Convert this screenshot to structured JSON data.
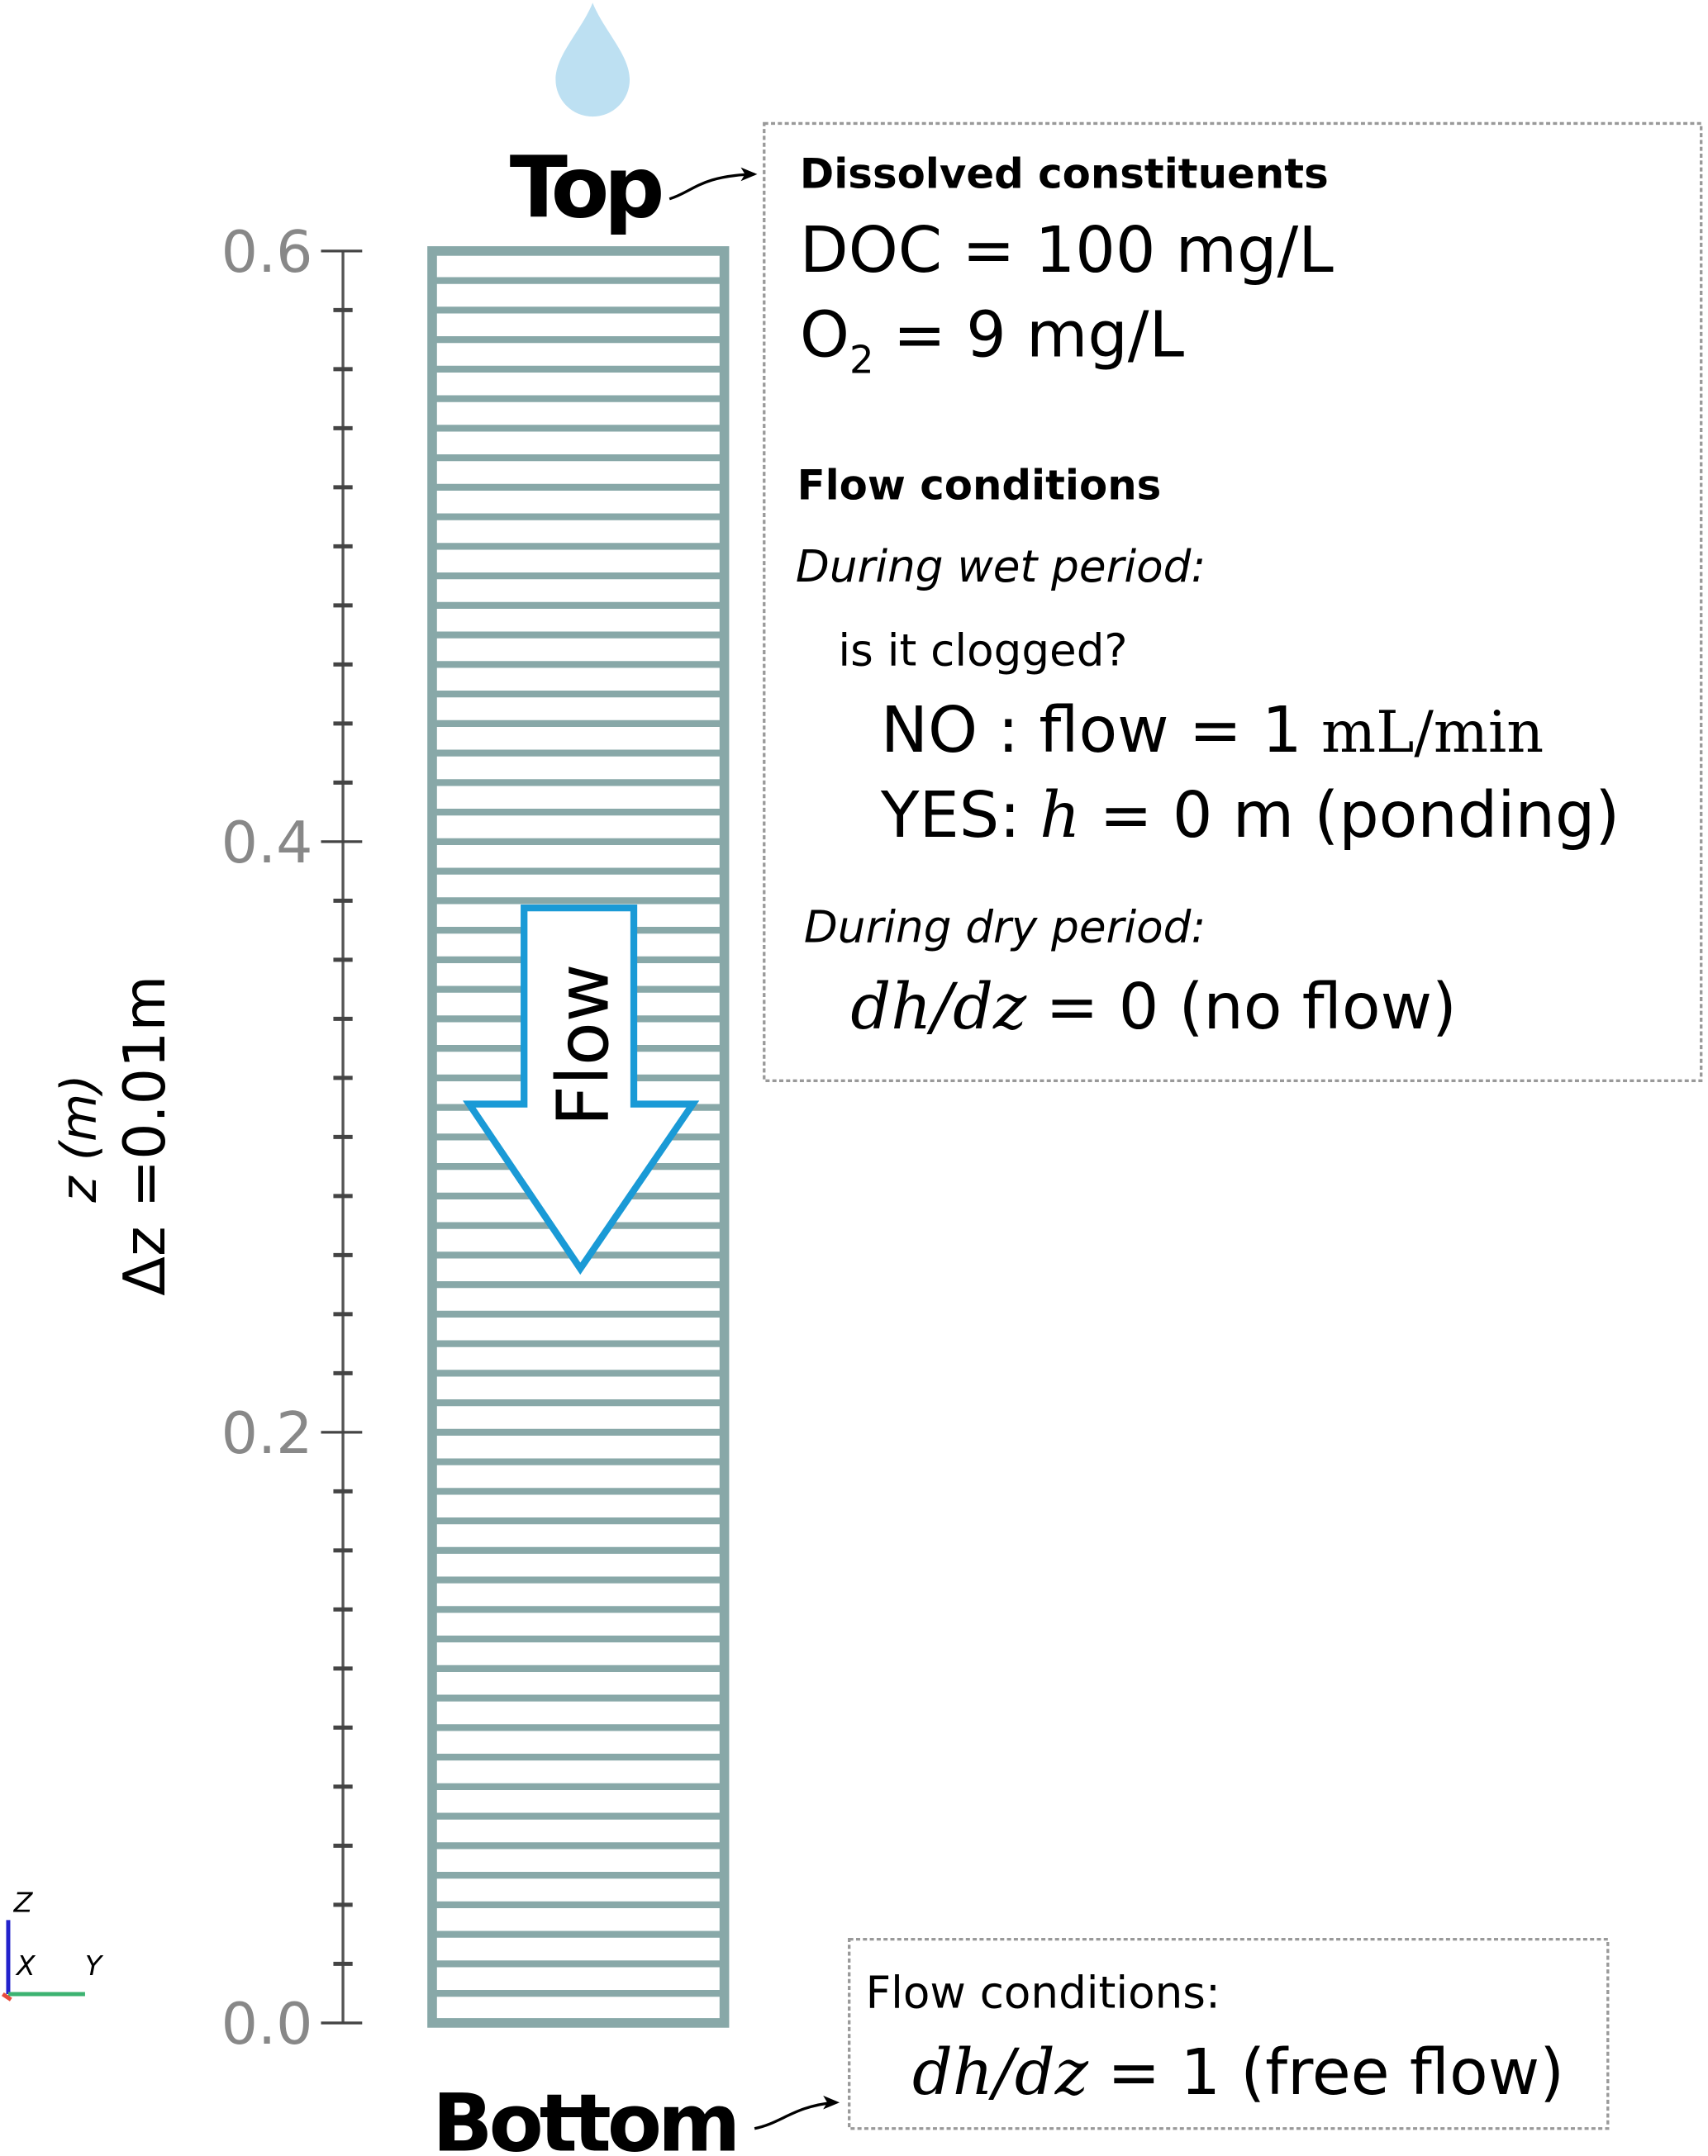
{
  "labels": {
    "top": "Top",
    "bottom": "Bottom",
    "axis_label": "z (m)",
    "cell_size": "Δz =0.01m",
    "flow": "Flow"
  },
  "axis": {
    "tick_labels": [
      "0.6",
      "0.4",
      "0.2",
      "0.0"
    ]
  },
  "triad": {
    "z": "Z",
    "x": "X",
    "y": "Y"
  },
  "top_box": {
    "heading": "Dissolved constituents",
    "doc": "DOC = 100 mg/L",
    "o2": {
      "symbol": "O",
      "subscript": "2",
      "rest": "= 9 mg/L"
    },
    "flow_heading": "Flow conditions",
    "wet": "During wet period:",
    "question": "is it clogged?",
    "no": {
      "lead": "NO : flow = 1",
      "unit": "mL/min"
    },
    "yes": {
      "lead": "YES:",
      "var": "h",
      "rest": "= 0 m (ponding)"
    },
    "dry": "During dry period:",
    "dry_cond": {
      "expr": "dh/dz",
      "rest": "= 0 (no flow)"
    }
  },
  "bottom_box": {
    "heading": "Flow conditions:",
    "cond": {
      "expr": "dh/dz",
      "rest": "= 1 (free flow)"
    }
  }
}
